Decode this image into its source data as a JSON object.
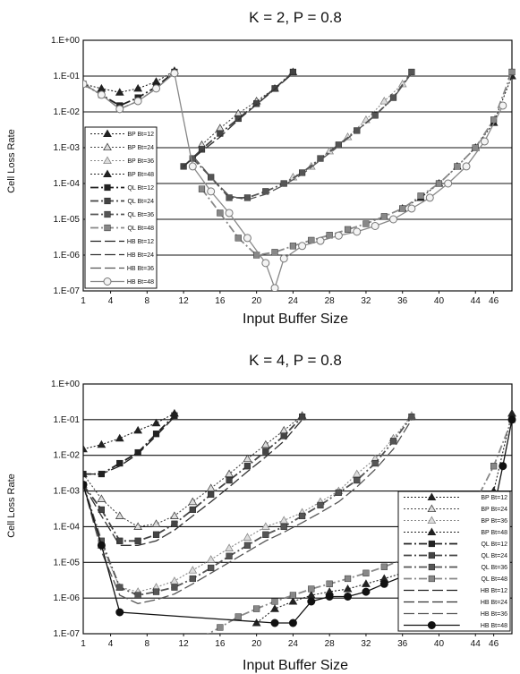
{
  "chart_data": [
    {
      "type": "line",
      "title": "K = 2, P = 0.8",
      "xlabel": "Input Buffer Size",
      "ylabel": "Cell Loss Rate",
      "y_scale": "log",
      "xlim": [
        1,
        48
      ],
      "ylim_labels": [
        "1.E-07",
        "1.E-06",
        "1.E-05",
        "1.E-04",
        "1.E-03",
        "1.E-02",
        "1.E-01",
        "1.E+00"
      ],
      "x_ticks": [
        4,
        8,
        12,
        16,
        20,
        24,
        28,
        32,
        36,
        40,
        44,
        46
      ],
      "grid": "horizontal",
      "legend_position": "left",
      "series": [
        {
          "name": "BP Bt=12",
          "style": "bp",
          "color": "#222222",
          "marker": "triangle-filled",
          "x": [
            1,
            3,
            5,
            7,
            9,
            11
          ],
          "y": [
            0.06,
            0.045,
            0.035,
            0.045,
            0.07,
            0.14
          ]
        },
        {
          "name": "BP Bt=24",
          "style": "bp",
          "color": "#444444",
          "marker": "triangle-open",
          "x": [
            14,
            16,
            18,
            20,
            22,
            24
          ],
          "y": [
            0.0012,
            0.0035,
            0.009,
            0.02,
            0.045,
            0.13
          ]
        },
        {
          "name": "BP Bt=36",
          "style": "bp",
          "color": "#888888",
          "marker": "triangle-open",
          "x": [
            24,
            26,
            28,
            30,
            32,
            34,
            36
          ],
          "y": [
            0.00015,
            0.0003,
            0.0008,
            0.002,
            0.006,
            0.02,
            0.06
          ]
        },
        {
          "name": "BP Bt=48",
          "style": "bp",
          "color": "#222222",
          "marker": "triangle-filled",
          "x": [
            36,
            38,
            40,
            42,
            44,
            46,
            48
          ],
          "y": [
            2e-05,
            4e-05,
            0.0001,
            0.0003,
            0.001,
            0.005,
            0.1
          ]
        },
        {
          "name": "QL Bt=12",
          "style": "ql",
          "color": "#222222",
          "marker": "square",
          "x": [
            1,
            3,
            5,
            7,
            9,
            11
          ],
          "y": [
            0.06,
            0.03,
            0.015,
            0.025,
            0.05,
            0.13
          ]
        },
        {
          "name": "QL Bt=24",
          "style": "ql",
          "color": "#444444",
          "marker": "square",
          "x": [
            12,
            14,
            16,
            18,
            20,
            22,
            24
          ],
          "y": [
            0.0003,
            0.0009,
            0.0025,
            0.0065,
            0.017,
            0.045,
            0.13
          ]
        },
        {
          "name": "QL Bt=36",
          "style": "ql",
          "color": "#555555",
          "marker": "square",
          "x": [
            13,
            15,
            17,
            19,
            21,
            23,
            25,
            27,
            29,
            31,
            33,
            35,
            37
          ],
          "y": [
            0.0005,
            0.00015,
            4e-05,
            4e-05,
            6e-05,
            0.0001,
            0.0002,
            0.0005,
            0.0012,
            0.003,
            0.008,
            0.025,
            0.13
          ]
        },
        {
          "name": "QL Bt=48",
          "style": "ql",
          "color": "#888888",
          "marker": "square",
          "x": [
            14,
            16,
            18,
            20,
            22,
            24,
            26,
            28,
            30,
            32,
            34,
            36,
            38,
            40,
            42,
            44,
            46,
            48
          ],
          "y": [
            7e-05,
            1.5e-05,
            3e-06,
            1e-06,
            1.2e-06,
            1.8e-06,
            2.6e-06,
            3.6e-06,
            5.2e-06,
            7.5e-06,
            1.2e-05,
            2e-05,
            4.5e-05,
            0.0001,
            0.0003,
            0.001,
            0.006,
            0.13
          ]
        },
        {
          "name": "HB Bt=12",
          "style": "hb",
          "color": "#222222",
          "marker": "none",
          "x": [
            1,
            3,
            5,
            7,
            9,
            11
          ],
          "y": [
            0.06,
            0.03,
            0.012,
            0.02,
            0.045,
            0.12
          ]
        },
        {
          "name": "HB Bt=24",
          "style": "hb",
          "color": "#333333",
          "marker": "none",
          "x": [
            12,
            14,
            16,
            18,
            20,
            22,
            24
          ],
          "y": [
            0.0003,
            0.0008,
            0.002,
            0.006,
            0.016,
            0.043,
            0.12
          ]
        },
        {
          "name": "HB Bt=36",
          "style": "hb",
          "color": "#555555",
          "marker": "none",
          "x": [
            13,
            15,
            17,
            19,
            21,
            23,
            25,
            27,
            29,
            31,
            33,
            35,
            37
          ],
          "y": [
            0.0006,
            0.00015,
            4.5e-05,
            3.5e-05,
            5e-05,
            9e-05,
            0.00018,
            0.00045,
            0.0011,
            0.003,
            0.008,
            0.024,
            0.12
          ]
        },
        {
          "name": "HB Bt=48",
          "style": "hbmark",
          "color": "#888888",
          "marker": "circle-open",
          "x": [
            1,
            3,
            5,
            7,
            9,
            11,
            13,
            15,
            17,
            19,
            21,
            22,
            23,
            25,
            27,
            29,
            31,
            33,
            35,
            37,
            39,
            41,
            43,
            45,
            47
          ],
          "y": [
            0.06,
            0.03,
            0.012,
            0.02,
            0.045,
            0.12,
            0.0003,
            6e-05,
            1.5e-05,
            3e-06,
            6e-07,
            1.2e-07,
            8e-07,
            1.8e-06,
            2.5e-06,
            3.5e-06,
            4.5e-06,
            6.5e-06,
            1e-05,
            2e-05,
            4e-05,
            0.0001,
            0.0003,
            0.0015,
            0.015
          ]
        }
      ]
    },
    {
      "type": "line",
      "title": "K = 4, P = 0.8",
      "xlabel": "Input Buffer Size",
      "ylabel": "Cell Loss Rate",
      "y_scale": "log",
      "xlim": [
        1,
        48
      ],
      "ylim_labels": [
        "1.E-07",
        "1.E-06",
        "1.E-05",
        "1.E-04",
        "1.E-03",
        "1.E-02",
        "1.E-01",
        "1.E+00"
      ],
      "x_ticks": [
        4,
        8,
        12,
        16,
        20,
        24,
        28,
        32,
        36,
        40,
        44,
        46
      ],
      "grid": "horizontal",
      "legend_position": "bottom-right",
      "series": [
        {
          "name": "BP Bt=12",
          "style": "bp",
          "color": "#222222",
          "marker": "triangle-filled",
          "x": [
            1,
            3,
            5,
            7,
            9,
            11
          ],
          "y": [
            0.015,
            0.02,
            0.03,
            0.05,
            0.08,
            0.15
          ]
        },
        {
          "name": "BP Bt=24",
          "style": "bp",
          "color": "#444444",
          "marker": "triangle-open",
          "x": [
            1,
            3,
            5,
            7,
            9,
            11,
            13,
            15,
            17,
            19,
            21,
            23,
            25
          ],
          "y": [
            0.003,
            0.0006,
            0.0002,
            0.0001,
            0.00012,
            0.0002,
            0.0005,
            0.0012,
            0.003,
            0.008,
            0.02,
            0.05,
            0.13
          ]
        },
        {
          "name": "BP Bt=36",
          "style": "bp",
          "color": "#888888",
          "marker": "triangle-open",
          "x": [
            1,
            3,
            5,
            7,
            9,
            11,
            13,
            15,
            17,
            19,
            21,
            23,
            25,
            27,
            29,
            31,
            33,
            35,
            37
          ],
          "y": [
            0.0015,
            3e-05,
            2e-06,
            1.5e-06,
            2e-06,
            3e-06,
            6e-06,
            1.2e-05,
            2.5e-05,
            5e-05,
            0.0001,
            0.00015,
            0.00025,
            0.0005,
            0.001,
            0.003,
            0.008,
            0.03,
            0.13
          ]
        },
        {
          "name": "BP Bt=48",
          "style": "bp",
          "color": "#222222",
          "marker": "triangle-filled",
          "x": [
            20,
            22,
            24,
            26,
            28,
            30,
            32,
            34,
            36,
            38,
            40,
            42,
            44,
            46,
            48
          ],
          "y": [
            2e-07,
            5e-07,
            8e-07,
            1.2e-06,
            1.5e-06,
            1.8e-06,
            2.5e-06,
            3.5e-06,
            5e-06,
            8e-06,
            1.5e-05,
            4e-05,
            0.0001,
            0.001,
            0.15
          ]
        },
        {
          "name": "QL Bt=12",
          "style": "ql",
          "color": "#222222",
          "marker": "square",
          "x": [
            1,
            3,
            5,
            7,
            9,
            11
          ],
          "y": [
            0.003,
            0.003,
            0.006,
            0.012,
            0.04,
            0.13
          ]
        },
        {
          "name": "QL Bt=24",
          "style": "ql",
          "color": "#444444",
          "marker": "square",
          "x": [
            1,
            3,
            5,
            7,
            9,
            11,
            13,
            15,
            17,
            19,
            21,
            23,
            25
          ],
          "y": [
            0.0015,
            0.0003,
            4e-05,
            4e-05,
            6e-05,
            0.00012,
            0.0003,
            0.0008,
            0.002,
            0.005,
            0.013,
            0.035,
            0.12
          ]
        },
        {
          "name": "QL Bt=36",
          "style": "ql",
          "color": "#555555",
          "marker": "square",
          "x": [
            1,
            3,
            5,
            7,
            9,
            11,
            13,
            15,
            17,
            19,
            21,
            23,
            25,
            27,
            29,
            31,
            33,
            35,
            37
          ],
          "y": [
            0.0015,
            4e-05,
            2e-06,
            1.2e-06,
            1.5e-06,
            2e-06,
            3.5e-06,
            7e-06,
            1.5e-05,
            3e-05,
            6e-05,
            0.0001,
            0.0002,
            0.0004,
            0.0009,
            0.002,
            0.006,
            0.025,
            0.12
          ]
        },
        {
          "name": "QL Bt=48",
          "style": "ql",
          "color": "#888888",
          "marker": "square",
          "x": [
            14,
            16,
            18,
            20,
            22,
            24,
            26,
            28,
            30,
            32,
            34,
            36,
            38,
            40,
            42,
            44,
            46,
            48
          ],
          "y": [
            8e-08,
            1.5e-07,
            3e-07,
            5e-07,
            8e-07,
            1.2e-06,
            1.8e-06,
            2.5e-06,
            3.5e-06,
            5e-06,
            7.5e-06,
            1.2e-05,
            2e-05,
            4e-05,
            0.0001,
            0.0005,
            0.005,
            0.1
          ]
        },
        {
          "name": "HB Bt=12",
          "style": "hb",
          "color": "#222222",
          "marker": "none",
          "x": [
            1,
            3,
            5,
            7,
            9,
            11
          ],
          "y": [
            0.003,
            0.003,
            0.005,
            0.011,
            0.035,
            0.12
          ]
        },
        {
          "name": "HB Bt=24",
          "style": "hb",
          "color": "#333333",
          "marker": "none",
          "x": [
            1,
            3,
            5,
            7,
            9,
            11,
            13,
            15,
            17,
            19,
            21,
            23,
            25
          ],
          "y": [
            0.0015,
            0.0002,
            3e-05,
            3e-05,
            4e-05,
            8e-05,
            0.0002,
            0.0005,
            0.0013,
            0.0035,
            0.009,
            0.025,
            0.1
          ]
        },
        {
          "name": "HB Bt=36",
          "style": "hb",
          "color": "#555555",
          "marker": "none",
          "x": [
            1,
            3,
            5,
            7,
            9,
            11,
            13,
            15,
            17,
            19,
            21,
            23,
            25,
            27,
            29,
            31,
            33,
            35,
            37
          ],
          "y": [
            0.0015,
            2e-05,
            1.2e-06,
            7e-07,
            9e-07,
            1.3e-06,
            2.5e-06,
            5e-06,
            1e-05,
            2e-05,
            4e-05,
            7e-05,
            0.00013,
            0.00025,
            0.0005,
            0.0013,
            0.004,
            0.015,
            0.1
          ]
        },
        {
          "name": "HB Bt=48",
          "style": "hbmark",
          "color": "#111111",
          "marker": "circle-filled",
          "x": [
            1,
            3,
            5,
            22,
            24,
            26,
            28,
            30,
            32,
            34,
            36,
            38,
            40,
            42,
            44,
            45,
            46,
            47,
            48
          ],
          "y": [
            0.0015,
            3e-05,
            4e-07,
            2e-07,
            2e-07,
            8e-07,
            1.1e-06,
            1.1e-06,
            1.5e-06,
            2.5e-06,
            4e-06,
            5e-06,
            5.5e-06,
            6.5e-06,
            1e-05,
            2.5e-05,
            0.0003,
            0.005,
            0.1
          ]
        }
      ]
    }
  ]
}
